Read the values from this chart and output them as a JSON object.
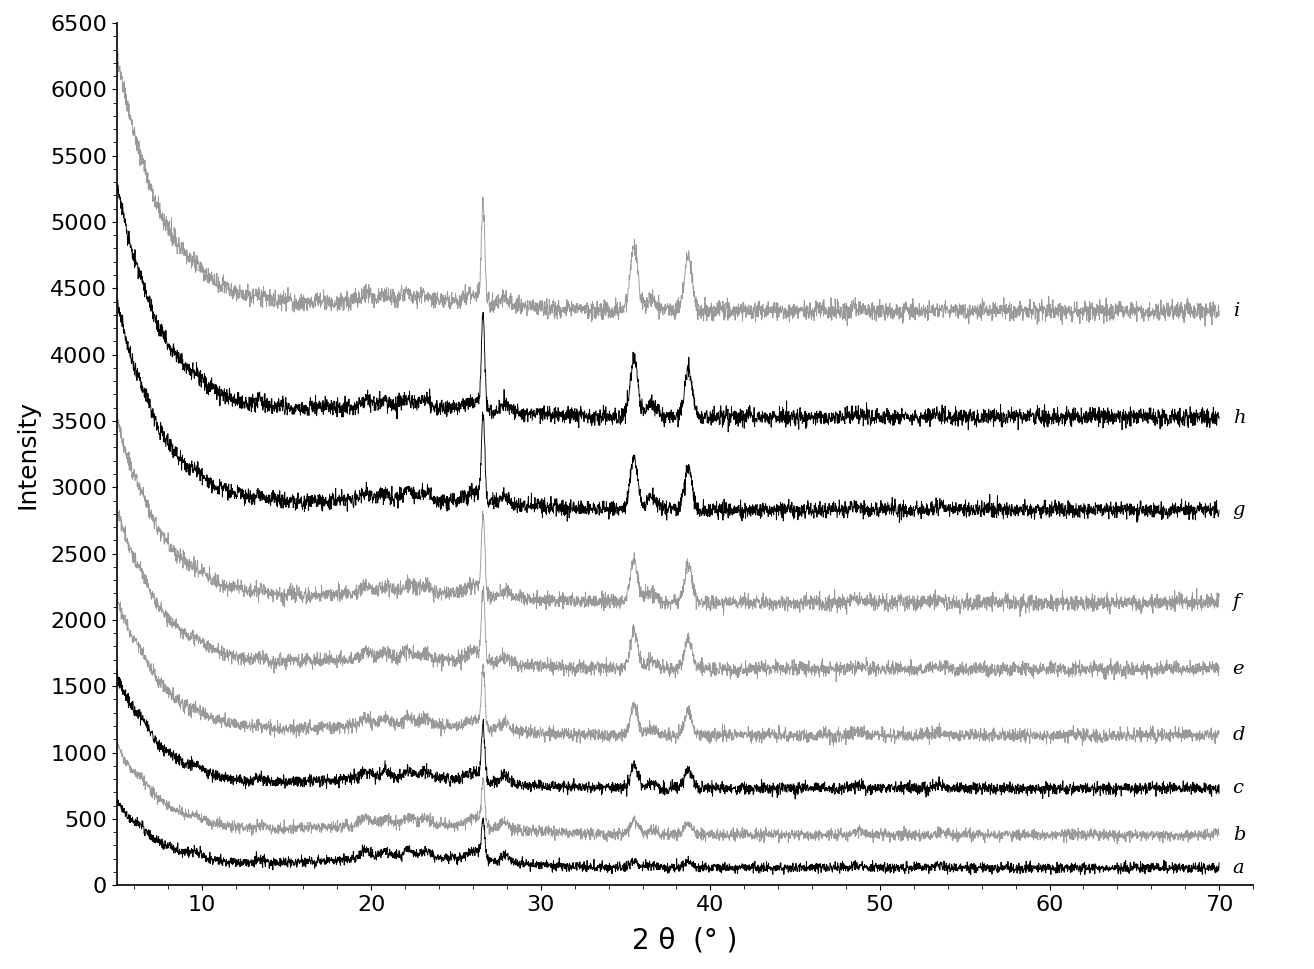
{
  "x_min": 5,
  "x_max": 70,
  "y_min": 0,
  "y_max": 6500,
  "xlabel": "2 θ  (° )",
  "ylabel": "Intensity",
  "xlabel_fontsize": 20,
  "ylabel_fontsize": 18,
  "yticks": [
    0,
    500,
    1000,
    1500,
    2000,
    2500,
    3000,
    3500,
    4000,
    4500,
    5000,
    5500,
    6000,
    6500
  ],
  "xticks": [
    10,
    20,
    30,
    40,
    50,
    60,
    70
  ],
  "curve_labels": [
    "a",
    "b",
    "c",
    "d",
    "e",
    "f",
    "g",
    "h",
    "i"
  ],
  "curve_offsets": [
    0,
    250,
    600,
    1000,
    1500,
    2000,
    2700,
    3400,
    4200
  ],
  "curve_colors": [
    "#000000",
    "#999999",
    "#000000",
    "#999999",
    "#999999",
    "#999999",
    "#000000",
    "#000000",
    "#999999"
  ],
  "background_color": "#ffffff",
  "tick_fontsize": 16
}
